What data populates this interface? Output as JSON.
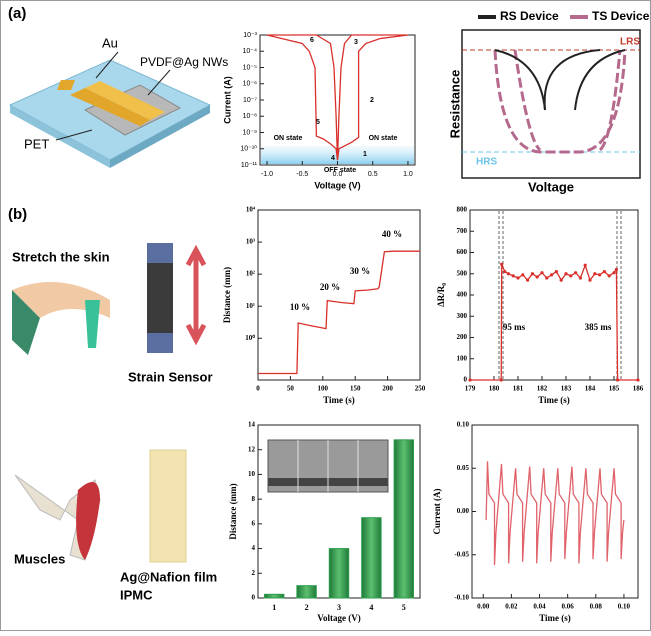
{
  "panel_labels": [
    "(a)",
    "(b)"
  ],
  "illustration_labels": {
    "au": "Au",
    "pvdf": "PVDF@Ag NWs",
    "pet": "PET",
    "stretch": "Stretch the skin",
    "strain": "Strain Sensor",
    "muscles": "Muscles",
    "film": "Ag@Nafion film",
    "ipmc": "IPMC"
  },
  "diagram": {
    "legend": [
      {
        "name": "RS Device",
        "color": "#222222"
      },
      {
        "name": "TS Device",
        "color": "#b5698c"
      }
    ],
    "lrs": "LRS",
    "hrs": "HRS",
    "y_label": "Resistance",
    "x_label": "Voltage"
  },
  "chart_data": [
    {
      "type": "line",
      "yscale": "log",
      "x_label": "Voltage (V)",
      "y_label": "Current (A)",
      "xlim": [
        -1.1,
        1.1
      ],
      "xticks": [
        {
          "value": -1,
          "label": "-1.0"
        },
        {
          "value": -0.5,
          "label": "-0.5"
        },
        {
          "value": 0,
          "label": "0.0"
        },
        {
          "value": 0.5,
          "label": "0.5"
        },
        {
          "value": 1,
          "label": "1.0"
        }
      ],
      "ylim": [
        1e-11,
        0.001
      ],
      "yticks": [
        {
          "value": 0.001,
          "label": "10⁻³"
        },
        {
          "value": 0.0001,
          "label": "10⁻⁴"
        },
        {
          "value": 1e-05,
          "label": "10⁻⁵"
        },
        {
          "value": 1e-06,
          "label": "10⁻⁶"
        },
        {
          "value": 1e-07,
          "label": "10⁻⁷"
        },
        {
          "value": 1e-08,
          "label": "10⁻⁸"
        },
        {
          "value": 1e-09,
          "label": "10⁻⁹"
        },
        {
          "value": 1e-10,
          "label": "10⁻¹⁰"
        },
        {
          "value": 1e-11,
          "label": "10⁻¹¹"
        }
      ],
      "annotations": [
        "1",
        "2",
        "3",
        "4",
        "5",
        "6",
        "ON state",
        "ON state",
        "OFF state"
      ],
      "x": [
        0,
        0.02,
        0.1,
        0.2,
        0.3,
        0.3,
        0.4,
        0.6,
        1.0,
        0.6,
        0.2,
        0.1,
        0.05,
        0.02,
        0,
        -0.02,
        -0.1,
        -0.2,
        -0.3,
        -0.32,
        -0.4,
        -0.5,
        -1.0,
        -0.6,
        -0.3,
        -0.1,
        -0.05,
        -0.02,
        0
      ],
      "series": [
        {
          "name": "I-V",
          "color": "#d9302c",
          "values": [
            2e-11,
            1e-10,
            1.5e-10,
            2.5e-10,
            5e-10,
            0.0001,
            0.0003,
            0.0006,
            0.001,
            0.001,
            0.001,
            0.0003,
            1e-05,
            1e-08,
            2e-11,
            1e-10,
            2e-10,
            4e-10,
            6e-10,
            1e-05,
            0.0001,
            0.0003,
            0.001,
            0.001,
            0.001,
            0.0003,
            1e-05,
            1e-08,
            2e-11
          ]
        }
      ]
    },
    {
      "type": "line",
      "yscale": "log",
      "x_label": "Time (s)",
      "y_label": "Distance (mm)",
      "xlim": [
        0,
        250
      ],
      "xticks": [
        0,
        50,
        100,
        150,
        200,
        250
      ],
      "ylim": [
        0.05,
        10000
      ],
      "yticks": [
        {
          "value": 10000,
          "label": "10⁴"
        },
        {
          "value": 1000,
          "label": "10³"
        },
        {
          "value": 100,
          "label": "10²"
        },
        {
          "value": 10,
          "label": "10¹"
        },
        {
          "value": 1,
          "label": "10⁰"
        }
      ],
      "annotations": [
        "10 %",
        "20 %",
        "30 %",
        "40 %"
      ],
      "x": [
        0,
        60,
        62,
        80,
        105,
        107,
        130,
        148,
        150,
        170,
        185,
        187,
        195,
        210,
        250
      ],
      "series": [
        {
          "name": "distance",
          "color": "#d9302c",
          "values": [
            0.08,
            0.08,
            3,
            2.5,
            2,
            15,
            13,
            12,
            30,
            32,
            35,
            40,
            500,
            520,
            520
          ]
        }
      ]
    },
    {
      "type": "line",
      "markers": true,
      "x_label": "Time (s)",
      "y_label": "ΔR/R₀",
      "xlim": [
        179,
        186
      ],
      "xticks": [
        179,
        180,
        181,
        182,
        183,
        184,
        185,
        186
      ],
      "ylim": [
        0,
        800
      ],
      "yticks": [
        0,
        100,
        200,
        300,
        400,
        500,
        600,
        700,
        800
      ],
      "annotations": [
        "95 ms",
        "385 ms"
      ],
      "x": [
        179,
        180.3,
        180.32,
        180.45,
        180.6,
        180.8,
        181.0,
        181.2,
        181.4,
        181.6,
        181.8,
        182.0,
        182.2,
        182.4,
        182.6,
        182.8,
        183.0,
        183.2,
        183.4,
        183.6,
        183.8,
        184.0,
        184.2,
        184.4,
        184.6,
        184.8,
        185.0,
        185.1,
        185.15,
        186
      ],
      "series": [
        {
          "name": "response",
          "color": "#d9302c",
          "values": [
            0,
            0,
            545,
            510,
            500,
            490,
            480,
            495,
            470,
            500,
            485,
            505,
            480,
            495,
            510,
            470,
            500,
            490,
            505,
            480,
            540,
            470,
            500,
            495,
            510,
            490,
            505,
            520,
            0,
            0
          ]
        }
      ]
    },
    {
      "type": "bar",
      "x_label": "Voltage (V)",
      "y_label": "Distance (mm)",
      "color": "#2e9e4f",
      "categories": [
        "1",
        "2",
        "3",
        "4",
        "5"
      ],
      "values": [
        0.3,
        1.0,
        4.0,
        6.5,
        12.8
      ],
      "ylim": [
        0,
        14
      ],
      "yticks": [
        0,
        2,
        4,
        6,
        8,
        10,
        12,
        14
      ]
    },
    {
      "type": "line",
      "x_label": "Time (s)",
      "y_label": "Current (A)",
      "xlim": [
        -0.008,
        0.11
      ],
      "xticks": [
        {
          "value": 0,
          "label": "0.00"
        },
        {
          "value": 0.02,
          "label": "0.02"
        },
        {
          "value": 0.04,
          "label": "0.04"
        },
        {
          "value": 0.06,
          "label": "0.06"
        },
        {
          "value": 0.08,
          "label": "0.08"
        },
        {
          "value": 0.1,
          "label": "0.10"
        }
      ],
      "ylim": [
        -0.1,
        0.1
      ],
      "yticks": [
        {
          "value": -0.1,
          "label": "-0.10"
        },
        {
          "value": -0.05,
          "label": "-0.05"
        },
        {
          "value": 0,
          "label": "0.00"
        },
        {
          "value": 0.05,
          "label": "0.05"
        },
        {
          "value": 0.1,
          "label": "0.10"
        }
      ],
      "x": [
        0.002,
        0.003,
        0.004,
        0.008,
        0.008,
        0.009,
        0.013,
        0.014,
        0.018,
        0.018,
        0.019,
        0.023,
        0.024,
        0.028,
        0.028,
        0.029,
        0.033,
        0.034,
        0.038,
        0.038,
        0.039,
        0.043,
        0.044,
        0.048,
        0.048,
        0.049,
        0.053,
        0.054,
        0.058,
        0.058,
        0.059,
        0.063,
        0.064,
        0.068,
        0.068,
        0.069,
        0.073,
        0.074,
        0.078,
        0.078,
        0.079,
        0.083,
        0.084,
        0.088,
        0.088,
        0.089,
        0.093,
        0.094,
        0.098,
        0.098,
        0.099,
        0.1
      ],
      "series": [
        {
          "name": "current",
          "color": "#e0616a",
          "values": [
            -0.01,
            0.058,
            0.02,
            0.01,
            -0.062,
            -0.025,
            0.055,
            0.02,
            0.01,
            -0.06,
            -0.025,
            0.05,
            0.02,
            0.01,
            -0.058,
            -0.025,
            0.052,
            0.02,
            0.01,
            -0.06,
            -0.025,
            0.05,
            0.02,
            0.01,
            -0.058,
            -0.025,
            0.05,
            0.02,
            0.01,
            -0.055,
            -0.025,
            0.052,
            0.02,
            0.01,
            -0.06,
            -0.025,
            0.05,
            0.02,
            0.01,
            -0.055,
            -0.025,
            0.05,
            0.02,
            0.01,
            -0.058,
            -0.025,
            0.05,
            0.02,
            0.01,
            -0.055,
            -0.025,
            -0.01
          ]
        }
      ]
    }
  ]
}
